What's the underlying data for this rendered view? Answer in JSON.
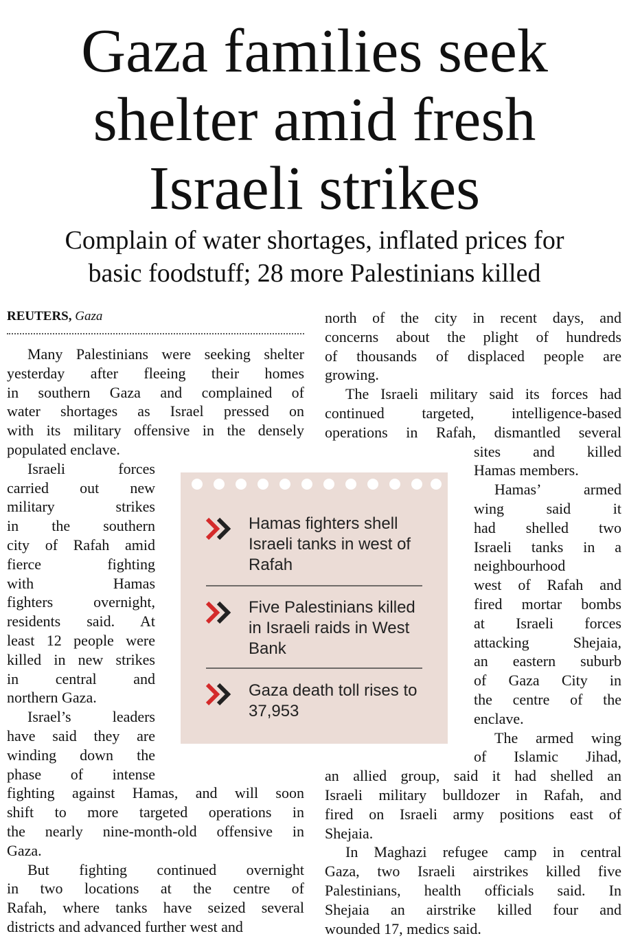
{
  "headline": {
    "lines": [
      "Gaza families seek",
      "shelter amid fresh",
      "Israeli strikes"
    ]
  },
  "subheadline": {
    "lines": [
      "Complain of water shortages, inflated prices for",
      "basic foodstuff; 28 more Palestinians killed"
    ]
  },
  "byline": {
    "agency": "REUTERS,",
    "place": "Gaza"
  },
  "columns": [
    {
      "paragraphs": [
        {
          "lines": [
            "Many Palestinians were seeking shelter",
            "yesterday after fleeing their homes",
            "in southern Gaza and complained of",
            "water shortages as Israel pressed on",
            "with its military offensive in the densely",
            "populated enclave."
          ]
        },
        {
          "lines": [
            "Israeli forces",
            "carried out new",
            "military strikes",
            "in the southern",
            "city of Rafah amid",
            "fierce fighting",
            "with Hamas",
            "fighters overnight,",
            "residents said. At",
            "least 12 people were",
            "killed in new strikes",
            "in central and",
            "northern Gaza."
          ]
        },
        {
          "lines": [
            "Israel’s leaders",
            "have said they are",
            "winding down the",
            "phase of intense",
            "fighting against Hamas, and will soon",
            "shift to more targeted operations in",
            "the nearly nine-month-old offensive in",
            "Gaza."
          ]
        },
        {
          "lines": [
            "But fighting continued overnight",
            "in two locations at the centre of",
            "Rafah, where tanks have seized several",
            "districts and advanced further west and"
          ]
        }
      ]
    },
    {
      "paragraphs": [
        {
          "lines": [
            "north of the city in recent days, and",
            "concerns about the plight of hundreds",
            "of thousands of displaced people are",
            "growing."
          ]
        },
        {
          "lines": [
            "The Israeli military said its forces had",
            "continued targeted, intelligence-based",
            "operations in Rafah, dismantled several",
            "sites and killed",
            "Hamas members."
          ]
        },
        {
          "lines": [
            "Hamas’ armed",
            "wing said it",
            "had shelled two",
            "Israeli tanks in a",
            "neighbourhood",
            "west of Rafah and",
            "fired mortar bombs",
            "at Israeli forces",
            "attacking Shejaia,",
            "an eastern suburb",
            "of Gaza City in",
            "the centre of the",
            "enclave."
          ]
        },
        {
          "lines": [
            "The armed wing",
            "of Islamic Jihad,",
            "an allied group, said it had shelled an",
            "Israeli military bulldozer in Rafah, and",
            "fired on Israeli army positions east of",
            "Shejaia."
          ]
        },
        {
          "lines": [
            "In Maghazi refugee camp in central",
            "Gaza, two Israeli airstrikes killed five",
            "Palestinians, health officials said. In",
            "Shejaia an airstrike killed four and",
            "wounded 17, medics said."
          ]
        }
      ]
    }
  ],
  "sidebar": {
    "items": [
      {
        "lines": [
          "Hamas fighters shell",
          "Israeli tanks in west of",
          "Rafah"
        ]
      },
      {
        "lines": [
          "Five Palestinians killed",
          "in Israeli raids in West",
          "Bank"
        ]
      },
      {
        "lines": [
          "Gaza death toll rises to",
          "37,953"
        ]
      }
    ]
  }
}
